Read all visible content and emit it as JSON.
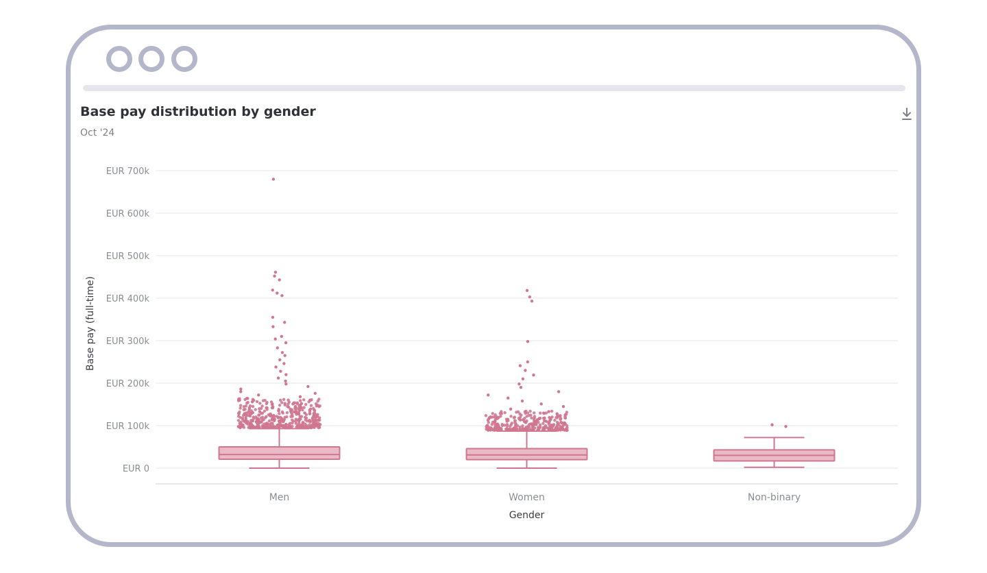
{
  "header": {
    "title": "Base pay distribution by gender",
    "subtitle": "Oct '24",
    "download_icon": "download-icon"
  },
  "window": {
    "frame_color": "#b4b6c9",
    "bar_color": "#e6e7ee"
  },
  "colors": {
    "accent": "#cf7790",
    "box_fill": "#e9b9c6",
    "grid": "#e6e6ea",
    "axis_line": "#e0e0e4"
  },
  "chart_data": {
    "type": "box",
    "title": "Base pay distribution by gender",
    "subtitle": "Oct '24",
    "xlabel": "Gender",
    "ylabel": "Base pay (full-time)",
    "ylim": [
      0,
      700000
    ],
    "yticks": [
      {
        "value": 0,
        "label": "EUR 0"
      },
      {
        "value": 100000,
        "label": "EUR 100k"
      },
      {
        "value": 200000,
        "label": "EUR 200k"
      },
      {
        "value": 300000,
        "label": "EUR 300k"
      },
      {
        "value": 400000,
        "label": "EUR 400k"
      },
      {
        "value": 500000,
        "label": "EUR 500k"
      },
      {
        "value": 600000,
        "label": "EUR 600k"
      },
      {
        "value": 700000,
        "label": "EUR 700k"
      }
    ],
    "grid": true,
    "categories": [
      "Men",
      "Women",
      "Non-binary"
    ],
    "series": [
      {
        "category": "Men",
        "min": 0,
        "q1": 21000,
        "median": 32000,
        "q3": 50000,
        "max": 93000,
        "outliers": [
          680000,
          461000,
          452000,
          443000,
          419000,
          412000,
          406000,
          355000,
          343000,
          333000,
          310000,
          304000,
          295000,
          283000,
          272000,
          265000,
          255000,
          246000,
          238000,
          228000,
          220000,
          212000,
          205000,
          198000,
          192000,
          186000,
          180000,
          176000,
          172000,
          168000,
          164000,
          160000,
          156000,
          152000,
          148000,
          145000,
          142000,
          139000,
          136000,
          133000,
          130000,
          127000,
          124000,
          121000,
          118000,
          115000,
          112000,
          109000,
          106000,
          103000,
          100000,
          97000,
          95000
        ]
      },
      {
        "category": "Women",
        "min": 0,
        "q1": 20000,
        "median": 31000,
        "q3": 46000,
        "max": 87000,
        "outliers": [
          418000,
          403000,
          393000,
          298000,
          250000,
          241000,
          230000,
          219000,
          210000,
          198000,
          190000,
          180000,
          172000,
          165000,
          158000,
          151000,
          145000,
          139000,
          133000,
          128000,
          123000,
          118000,
          114000,
          110000,
          106000,
          102000,
          98000,
          95000,
          92000,
          89000
        ]
      },
      {
        "category": "Non-binary",
        "min": 2000,
        "q1": 17000,
        "median": 30000,
        "q3": 43000,
        "max": 72000,
        "outliers": [
          102000,
          98000
        ]
      }
    ]
  }
}
